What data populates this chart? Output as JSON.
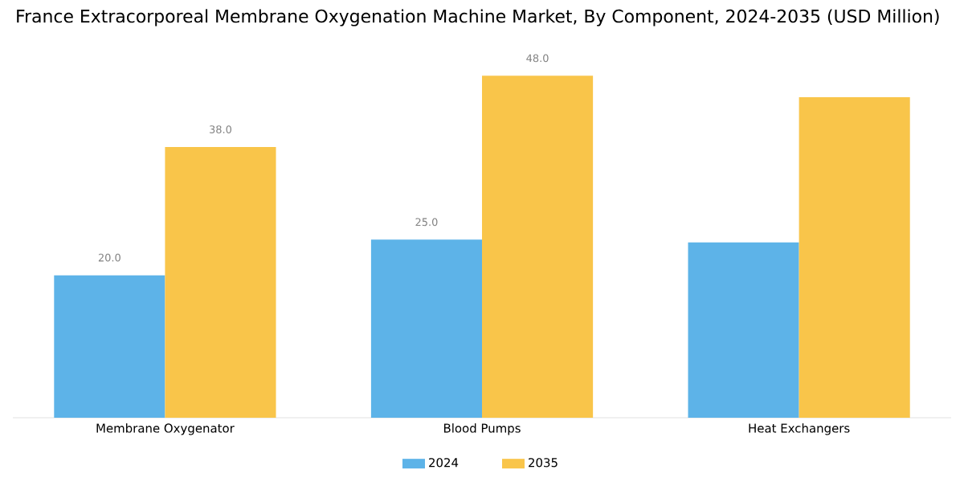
{
  "chart_data": {
    "type": "bar",
    "title": "France Extracorporeal Membrane Oxygenation Machine Market, By Component, 2024-2035 (USD Million)",
    "categories": [
      "Membrane Oxygenator",
      "Blood Pumps",
      "Heat Exchangers"
    ],
    "series": [
      {
        "name": "2024",
        "color": "#5db3e8",
        "values": [
          20.0,
          25.0,
          24.6
        ],
        "value_labels": [
          "20.0",
          "25.0",
          null
        ]
      },
      {
        "name": "2035",
        "color": "#f9c54a",
        "values": [
          38.0,
          48.0,
          45.0
        ],
        "value_labels": [
          "38.0",
          "48.0",
          null
        ]
      }
    ],
    "legend": "bottom"
  }
}
